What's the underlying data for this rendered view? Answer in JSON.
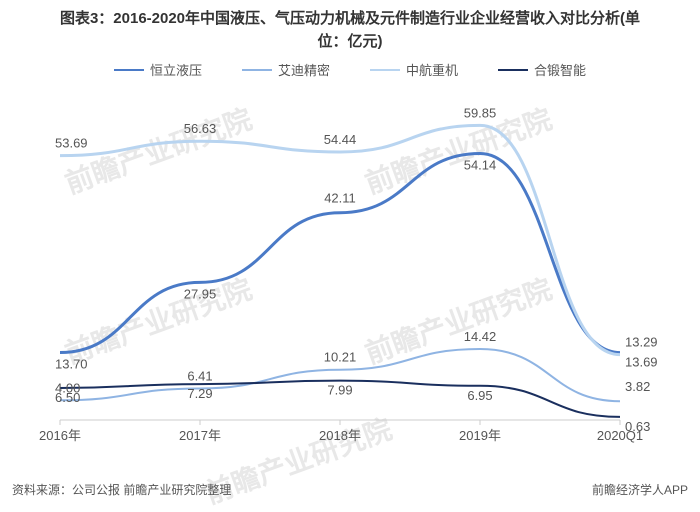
{
  "title_line1": "图表3：2016-2020年中国液压、气压动力机械及元件制造行业企业经营收入对比分析(单",
  "title_line2": "位：亿元)",
  "legend": {
    "items": [
      {
        "label": "恒立液压",
        "color": "#4a7ac7"
      },
      {
        "label": "艾迪精密",
        "color": "#8fb4e3"
      },
      {
        "label": "中航重机",
        "color": "#b8d4f0"
      },
      {
        "label": "合锻智能",
        "color": "#1a2f5e"
      }
    ]
  },
  "chart": {
    "type": "line",
    "categories": [
      "2016年",
      "2017年",
      "2018年",
      "2019年",
      "2020Q1"
    ],
    "ylim": [
      0,
      65
    ],
    "series": [
      {
        "name": "恒立液压",
        "color": "#4a7ac7",
        "width": 3,
        "values": [
          13.7,
          27.95,
          42.11,
          54.14,
          13.69
        ],
        "labels": [
          "13.70",
          "27.95",
          "42.11",
          "54.14",
          "13.69"
        ],
        "label_dy": [
          16,
          16,
          -10,
          16,
          14
        ]
      },
      {
        "name": "艾迪精密",
        "color": "#8fb4e3",
        "width": 2,
        "values": [
          4.0,
          6.41,
          10.21,
          14.42,
          3.82
        ],
        "labels": [
          "4.00",
          "6.41",
          "10.21",
          "14.42",
          "3.82"
        ],
        "label_dy": [
          -8,
          -8,
          -8,
          -8,
          -10
        ]
      },
      {
        "name": "中航重机",
        "color": "#b8d4f0",
        "width": 3,
        "values": [
          53.69,
          56.63,
          54.44,
          59.85,
          13.29
        ],
        "labels": [
          "53.69",
          "56.63",
          "54.44",
          "59.85",
          "13.29"
        ],
        "label_dy": [
          -8,
          -8,
          -8,
          -8,
          -8
        ]
      },
      {
        "name": "合锻智能",
        "color": "#1a2f5e",
        "width": 2,
        "values": [
          6.5,
          7.29,
          7.99,
          6.95,
          0.63
        ],
        "labels": [
          "6.50",
          "7.29",
          "7.99",
          "6.95",
          "0.63"
        ],
        "label_dy": [
          14,
          14,
          14,
          14,
          14
        ]
      }
    ],
    "background_color": "#ffffff",
    "axis_color": "#cccccc",
    "label_color": "#555555",
    "label_fontsize": 13
  },
  "source_text": "资料来源：公司公报 前瞻产业研究院整理",
  "footer_right": "前瞻经济学人APP",
  "watermark_text": "前瞻产业研究院"
}
